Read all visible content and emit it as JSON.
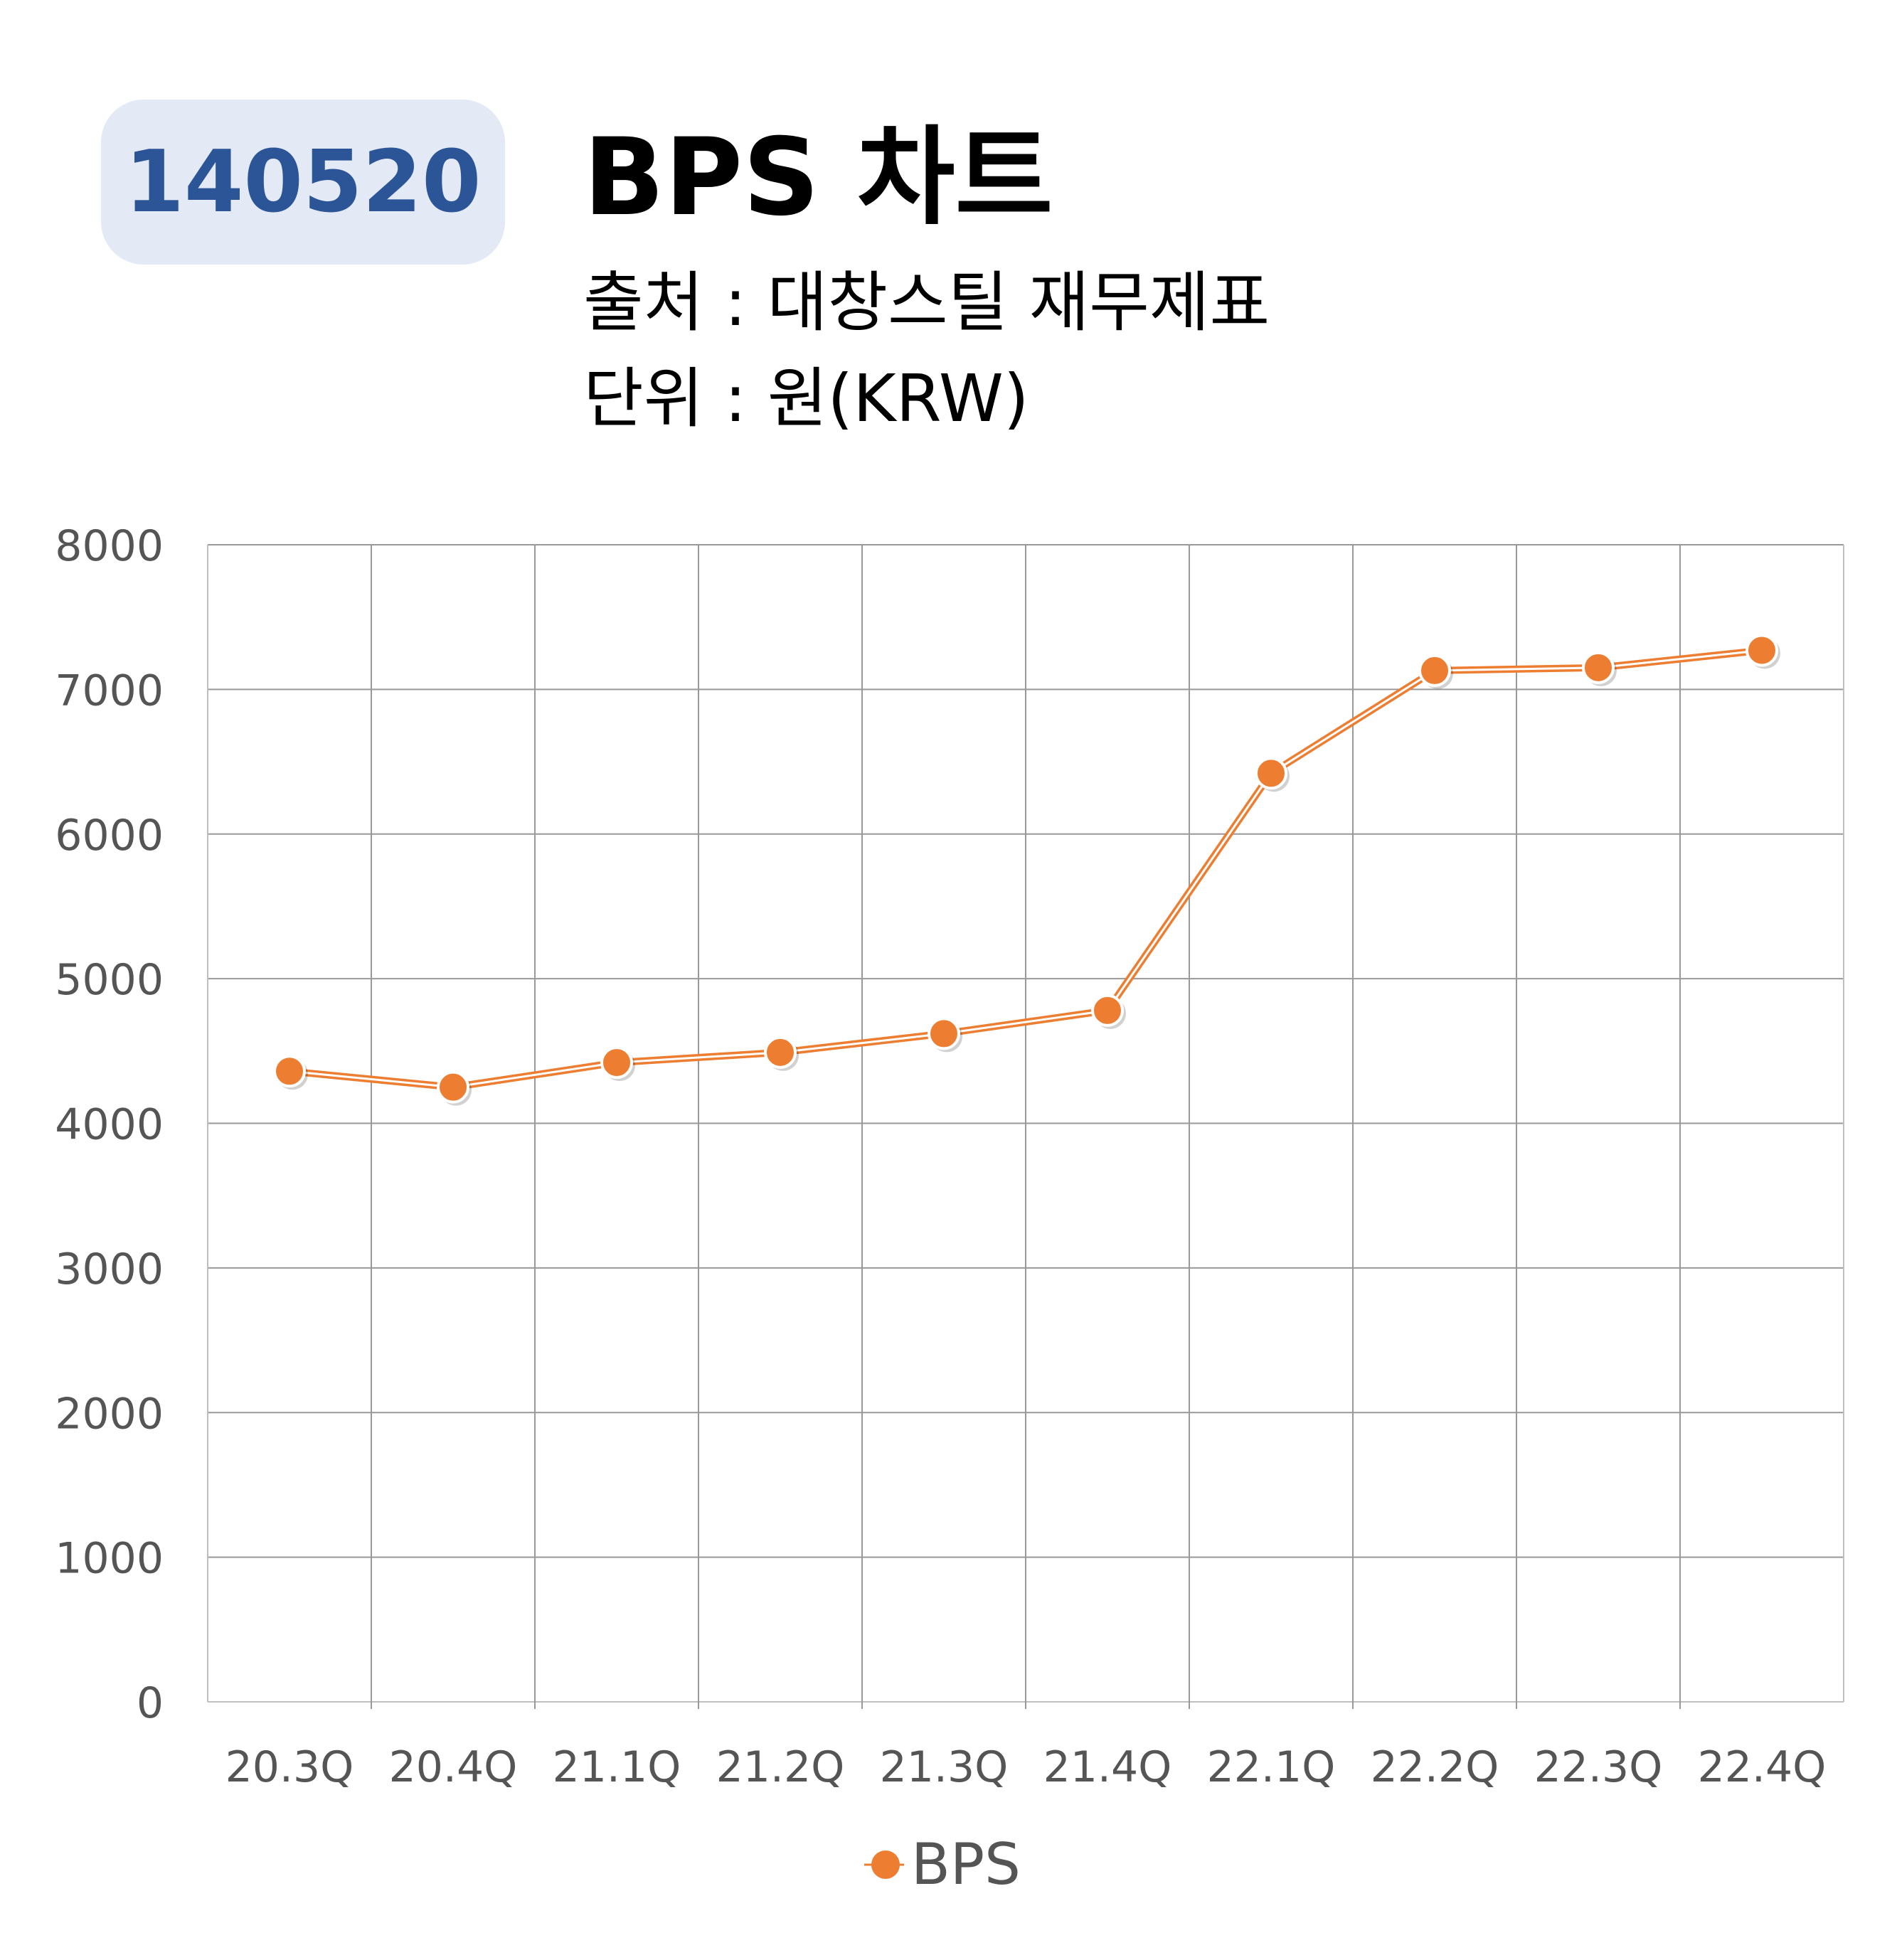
{
  "header": {
    "code": "140520",
    "title": "BPS 차트",
    "source": "출처 : 대창스틸 재무제표",
    "unit": "단위 : 원(KRW)"
  },
  "chart_data": {
    "type": "line",
    "categories": [
      "20.3Q",
      "20.4Q",
      "21.1Q",
      "21.2Q",
      "21.3Q",
      "21.4Q",
      "22.1Q",
      "22.2Q",
      "22.3Q",
      "22.4Q"
    ],
    "series": [
      {
        "name": "BPS",
        "color": "#ed7d31",
        "values": [
          4360,
          4250,
          4420,
          4490,
          4620,
          4780,
          6420,
          7130,
          7150,
          7270
        ]
      }
    ],
    "yticks": [
      "0",
      "1000",
      "2000",
      "3000",
      "4000",
      "5000",
      "6000",
      "7000",
      "8000"
    ],
    "ylim": [
      0,
      8000
    ],
    "grid": true,
    "legend": "bottom"
  }
}
